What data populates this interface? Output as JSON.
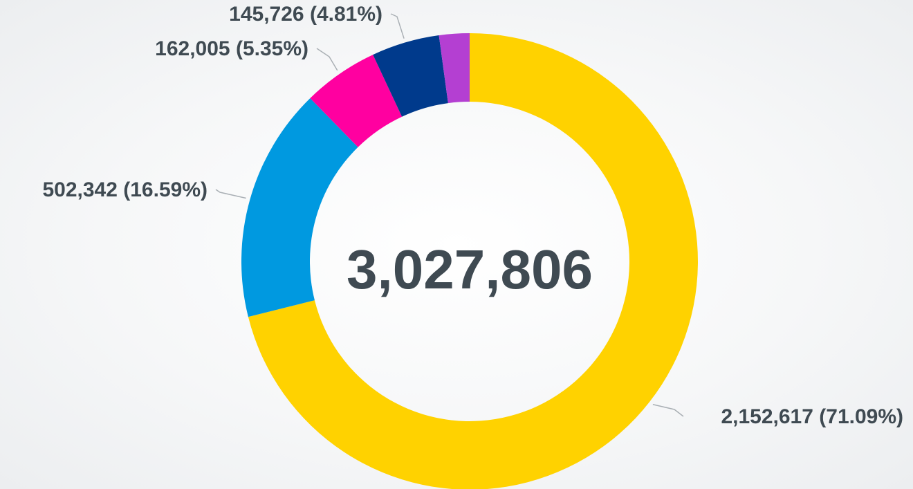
{
  "chart_data": {
    "type": "pie",
    "variant": "donut",
    "total_label": "3,027,806",
    "total": 3027806,
    "slices": [
      {
        "value": 2152617,
        "label": "2,152,617 (71.09%)",
        "percent": 71.09,
        "color": "#ffd200"
      },
      {
        "value": 502342,
        "label": "502,342 (16.59%)",
        "percent": 16.59,
        "color": "#0099e0"
      },
      {
        "value": 162005,
        "label": "162,005 (5.35%)",
        "percent": 5.35,
        "color": "#ff00a0"
      },
      {
        "value": 145726,
        "label": "145,726 (4.81%)",
        "percent": 4.81,
        "color": "#003a8c"
      },
      {
        "value": 65116,
        "label": "",
        "percent": 2.15,
        "color": "#b43fd2"
      }
    ],
    "legend": "none"
  }
}
